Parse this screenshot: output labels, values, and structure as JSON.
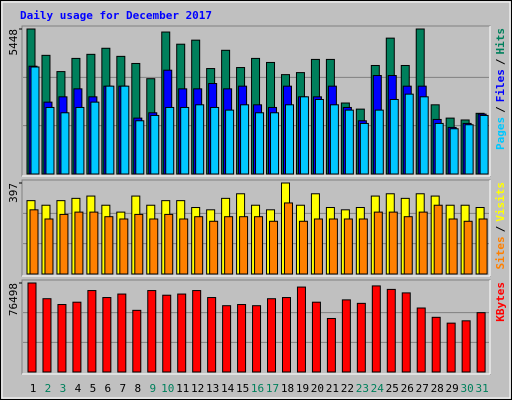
{
  "title": "Daily usage for December 2017",
  "chart_data": [
    {
      "type": "bar",
      "ylim": [
        0,
        5448
      ],
      "yticks": [
        5448
      ],
      "separator": "/",
      "series": [
        {
          "name": "Hits",
          "color": "#00805c",
          "values": [
            5448,
            4458,
            3848,
            4343,
            4496,
            4724,
            4420,
            4153,
            3581,
            5334,
            4877,
            5029,
            3962,
            4648,
            4000,
            4343,
            4191,
            3734,
            3810,
            4305,
            4305,
            2667,
            2438,
            4077,
            5105,
            4077,
            5448,
            2600,
            2100,
            2030,
            2280
          ]
        },
        {
          "name": "Files",
          "color": "#0000ff",
          "values": [
            4050,
            2700,
            2900,
            3200,
            2900,
            3300,
            3300,
            2100,
            2300,
            3900,
            3200,
            3200,
            3400,
            3200,
            3300,
            2600,
            2500,
            3300,
            2900,
            2900,
            3300,
            2500,
            2000,
            3700,
            3700,
            3300,
            3300,
            2050,
            1750,
            1900,
            2250
          ]
        },
        {
          "name": "Pages",
          "color": "#00c8ff",
          "values": [
            4020,
            2500,
            2300,
            2500,
            2700,
            3300,
            3300,
            2000,
            2200,
            2500,
            2500,
            2600,
            2500,
            2400,
            2600,
            2300,
            2300,
            2600,
            2900,
            2800,
            2600,
            2400,
            1900,
            2400,
            2800,
            3000,
            2900,
            1900,
            1700,
            1850,
            2200
          ]
        }
      ]
    },
    {
      "type": "bar",
      "ylim": [
        0,
        397
      ],
      "yticks": [
        397
      ],
      "separator": "/",
      "series": [
        {
          "name": "Visits",
          "color": "#ffff00",
          "values": [
            320,
            300,
            320,
            330,
            340,
            300,
            270,
            340,
            300,
            320,
            320,
            290,
            280,
            330,
            350,
            300,
            280,
            397,
            300,
            350,
            290,
            280,
            290,
            340,
            350,
            330,
            350,
            340,
            300,
            300,
            290
          ]
        },
        {
          "name": "Sites",
          "color": "#ff8000",
          "values": [
            280,
            240,
            260,
            270,
            270,
            250,
            240,
            260,
            240,
            260,
            240,
            250,
            230,
            250,
            250,
            250,
            230,
            310,
            230,
            240,
            240,
            240,
            240,
            270,
            270,
            250,
            270,
            300,
            240,
            230,
            240
          ]
        }
      ]
    },
    {
      "type": "bar",
      "ylim": [
        0,
        76498
      ],
      "yticks": [
        76498
      ],
      "categories": [
        "1",
        "2",
        "3",
        "4",
        "5",
        "6",
        "7",
        "8",
        "9",
        "10",
        "11",
        "12",
        "13",
        "14",
        "15",
        "16",
        "17",
        "18",
        "19",
        "20",
        "21",
        "22",
        "23",
        "24",
        "25",
        "26",
        "27",
        "28",
        "29",
        "30",
        "31"
      ],
      "category_colors": [
        "#000000",
        "#00805c",
        "#00805c",
        "#000000",
        "#000000",
        "#000000",
        "#000000",
        "#000000",
        "#00805c",
        "#00805c",
        "#000000",
        "#000000",
        "#000000",
        "#000000",
        "#000000",
        "#00805c",
        "#00805c",
        "#000000",
        "#000000",
        "#000000",
        "#000000",
        "#000000",
        "#00805c",
        "#00805c",
        "#000000",
        "#000000",
        "#000000",
        "#000000",
        "#000000",
        "#00805c",
        "#00805c"
      ],
      "series": [
        {
          "name": "KBytes",
          "color": "#ff0000",
          "values": [
            76498,
            63000,
            58000,
            60000,
            70000,
            64000,
            67000,
            53000,
            70000,
            66000,
            67000,
            70000,
            64000,
            57000,
            58000,
            57000,
            63000,
            64000,
            73000,
            60000,
            46000,
            62000,
            59000,
            74000,
            71000,
            68000,
            55000,
            47000,
            42000,
            44000,
            51000
          ]
        }
      ]
    }
  ]
}
